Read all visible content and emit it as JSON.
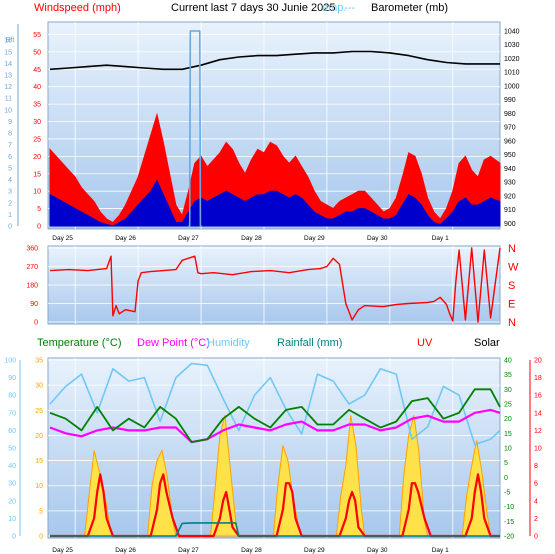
{
  "top_header": {
    "windspeed_label": "Windspeed (mph)",
    "current_label": "Current last 7 days 30 Junie 2025",
    "temp_overlap_label": "emp.",
    "dashes": "---",
    "barometer_label": "Barometer (mb)"
  },
  "bottom_header": {
    "temperature_label": "Temperature (°C)",
    "dewpoint_label": "Dew Point (°C)",
    "humidity_label": "Humidity",
    "rainfall_label": "Rainfall (mm)",
    "uv_label": "UV",
    "solar_label": "Solar"
  },
  "colors": {
    "panel_bg_top": "#e6f1fb",
    "panel_bg_bottom": "#a9c9ec",
    "grid": "#ffffff",
    "wind_gust": "#ff0000",
    "wind_avg": "#0000cc",
    "barometer": "#000000",
    "direction": "#ff0000",
    "temperature": "#008000",
    "dewpoint": "#ff00ff",
    "humidity": "#6fc8f5",
    "rainfall": "#008080",
    "uv": "#ff0000",
    "solar": "#ffa000",
    "solar_fill": "#ffe24a",
    "axis_blue": "#6aa8e0"
  },
  "chart_data": [
    {
      "type": "line",
      "name": "wind_barometer",
      "x_ticks": [
        "Day 25",
        "Day 26",
        "Day 27",
        "Day 28",
        "Day 29",
        "Day 30",
        "Day 1"
      ],
      "y_left_ticks": [
        "0",
        "5",
        "10",
        "15",
        "20",
        "25",
        "30",
        "35",
        "40",
        "45",
        "50",
        "55"
      ],
      "y_left_lim": [
        0,
        58
      ],
      "y_left_outer_ticks": [
        "0",
        "1",
        "2",
        "3",
        "4",
        "5",
        "6",
        "7",
        "8",
        "9",
        "10",
        "11",
        "12",
        "13",
        "14",
        "15",
        "16"
      ],
      "y_left_outer_label": "Bft",
      "y_right_ticks": [
        "900",
        "910",
        "920",
        "930",
        "940",
        "950",
        "960",
        "970",
        "980",
        "990",
        "1000",
        "1010",
        "1020",
        "1030",
        "1040"
      ],
      "y_right_lim": [
        898,
        1045
      ],
      "series": [
        {
          "name": "gust",
          "axis": "left",
          "x": [
            0,
            0.1,
            0.2,
            0.3,
            0.4,
            0.5,
            0.6,
            0.7,
            0.8,
            0.9,
            1.0,
            1.1,
            1.2,
            1.3,
            1.4,
            1.5,
            1.6,
            1.7,
            1.8,
            1.9,
            2.0,
            2.1,
            2.2,
            2.3,
            2.4,
            2.5,
            2.6,
            2.7,
            2.8,
            2.9,
            3.0,
            3.1,
            3.2,
            3.3,
            3.4,
            3.5,
            3.6,
            3.7,
            3.8,
            3.9,
            4.0,
            4.1,
            4.2,
            4.3,
            4.4,
            4.5,
            4.6,
            4.7,
            4.8,
            4.9,
            5.0,
            5.1,
            5.2,
            5.3,
            5.4,
            5.5,
            5.6,
            5.7,
            5.8,
            5.9,
            6.0,
            6.1,
            6.2,
            6.3,
            6.4,
            6.5,
            6.6,
            6.7,
            6.8,
            6.9,
            7.0,
            7.15
          ],
          "values": [
            22,
            20,
            18,
            16,
            14,
            11,
            9,
            7,
            4,
            2,
            1,
            3,
            6,
            10,
            14,
            20,
            26,
            32,
            24,
            15,
            6,
            3,
            10,
            18,
            20,
            17,
            19,
            21,
            24,
            22,
            18,
            15,
            19,
            22,
            21,
            24,
            23,
            20,
            18,
            20,
            17,
            14,
            10,
            7,
            6,
            5,
            7,
            8,
            9,
            10,
            10,
            8,
            6,
            4,
            5,
            8,
            14,
            21,
            20,
            15,
            8,
            4,
            2,
            5,
            10,
            18,
            20,
            16,
            14,
            19,
            20,
            18
          ]
        },
        {
          "name": "average",
          "axis": "left",
          "x": [
            0,
            0.1,
            0.2,
            0.3,
            0.4,
            0.5,
            0.6,
            0.7,
            0.8,
            0.9,
            1.0,
            1.1,
            1.2,
            1.3,
            1.4,
            1.5,
            1.6,
            1.7,
            1.8,
            1.9,
            2.0,
            2.1,
            2.2,
            2.3,
            2.4,
            2.5,
            2.6,
            2.7,
            2.8,
            2.9,
            3.0,
            3.1,
            3.2,
            3.3,
            3.4,
            3.5,
            3.6,
            3.7,
            3.8,
            3.9,
            4.0,
            4.1,
            4.2,
            4.3,
            4.4,
            4.5,
            4.6,
            4.7,
            4.8,
            4.9,
            5.0,
            5.1,
            5.2,
            5.3,
            5.4,
            5.5,
            5.6,
            5.7,
            5.8,
            5.9,
            6.0,
            6.1,
            6.2,
            6.3,
            6.4,
            6.5,
            6.6,
            6.7,
            6.8,
            6.9,
            7.0,
            7.15
          ],
          "values": [
            9,
            8,
            7,
            6,
            5,
            4,
            3,
            2,
            1,
            0.5,
            0,
            1,
            2,
            4,
            6,
            8,
            10,
            13,
            9,
            5,
            1,
            1,
            4,
            7,
            8,
            7,
            8,
            9,
            10,
            9,
            8,
            7,
            8,
            9,
            9,
            10,
            10,
            9,
            8,
            9,
            8,
            6,
            4,
            3,
            2,
            2,
            3,
            4,
            4,
            5,
            5,
            4,
            3,
            2,
            2,
            3,
            6,
            9,
            8,
            6,
            3,
            1,
            0.5,
            2,
            4,
            7,
            8,
            6,
            6,
            7,
            8,
            7
          ]
        },
        {
          "name": "barometer",
          "axis": "right",
          "x": [
            0,
            0.3,
            0.6,
            0.9,
            1.2,
            1.5,
            1.8,
            2.1,
            2.4,
            2.7,
            3.0,
            3.3,
            3.6,
            3.9,
            4.2,
            4.5,
            4.8,
            5.1,
            5.4,
            5.7,
            6.0,
            6.3,
            6.6,
            6.9,
            7.15
          ],
          "values": [
            1012,
            1013,
            1014,
            1015,
            1014,
            1013,
            1012,
            1012,
            1015,
            1019,
            1021,
            1022,
            1022,
            1023,
            1024,
            1024,
            1025,
            1025,
            1024,
            1022,
            1019,
            1017,
            1016,
            1016,
            1016
          ]
        },
        {
          "name": "temperature_spike",
          "axis": "left",
          "x": [
            2.2,
            2.22,
            2.23,
            2.38,
            2.39,
            2.41
          ],
          "values": [
            0,
            0,
            56,
            56,
            0,
            0
          ]
        }
      ]
    },
    {
      "type": "line",
      "name": "wind_direction",
      "x_ticks": [
        "Day 25",
        "Day 26",
        "Day 27",
        "Day 28",
        "Day 29",
        "Day 30",
        "Day 1"
      ],
      "y_left_ticks": [
        "0",
        "90",
        "180",
        "270",
        "360"
      ],
      "y_left_lim": [
        0,
        360
      ],
      "y_right_ticks": [
        "N",
        "E",
        "S",
        "W",
        "N"
      ],
      "series": [
        {
          "name": "direction",
          "x": [
            0,
            0.3,
            0.6,
            0.9,
            0.97,
            1.0,
            1.05,
            1.1,
            1.2,
            1.35,
            1.4,
            1.45,
            1.6,
            1.8,
            2.0,
            2.1,
            2.3,
            2.35,
            2.4,
            2.6,
            2.9,
            3.2,
            3.5,
            3.8,
            4.1,
            4.3,
            4.4,
            4.5,
            4.6,
            4.7,
            4.8,
            4.9,
            5.0,
            5.3,
            5.5,
            5.7,
            6.0,
            6.1,
            6.2,
            6.3,
            6.35,
            6.4,
            6.45,
            6.5,
            6.6,
            6.7,
            6.8,
            6.9,
            7.0,
            7.15
          ],
          "values": [
            250,
            255,
            250,
            260,
            320,
            30,
            80,
            40,
            60,
            50,
            200,
            240,
            245,
            250,
            255,
            300,
            320,
            240,
            235,
            240,
            230,
            245,
            250,
            240,
            255,
            260,
            270,
            310,
            280,
            90,
            10,
            60,
            80,
            75,
            85,
            90,
            95,
            100,
            120,
            85,
            40,
            5,
            200,
            350,
            10,
            360,
            0,
            350,
            20,
            360
          ]
        }
      ]
    },
    {
      "type": "line",
      "name": "temperature_rain_uv_solar",
      "x_ticks": [
        "Day 25",
        "Day 26",
        "Day 27",
        "Day 28",
        "Day 29",
        "Day 30",
        "Day 1"
      ],
      "y_left_outer_ticks": [
        "0",
        "10",
        "20",
        "30",
        "40",
        "50",
        "60",
        "70",
        "80",
        "90",
        "100"
      ],
      "y_left_ticks": [
        "0",
        "5",
        "10",
        "15",
        "20",
        "25",
        "30",
        "35"
      ],
      "y_left_lim": [
        0,
        35
      ],
      "y_right_ticks": [
        "-20",
        "-15",
        "-10",
        "-5",
        "0",
        "5",
        "10",
        "15",
        "20",
        "25",
        "30",
        "35",
        "40"
      ],
      "y_right_lim": [
        -20,
        40
      ],
      "y_right_uv_ticks": [
        "0",
        "2",
        "4",
        "6",
        "8",
        "10",
        "12",
        "14",
        "16",
        "18",
        "20"
      ],
      "series": [
        {
          "name": "temperature",
          "axis": "right",
          "x": [
            0,
            0.25,
            0.5,
            0.75,
            1.0,
            1.25,
            1.5,
            1.75,
            2.0,
            2.25,
            2.5,
            2.75,
            3.0,
            3.25,
            3.5,
            3.75,
            4.0,
            4.25,
            4.5,
            4.75,
            5.0,
            5.25,
            5.5,
            5.75,
            6.0,
            6.25,
            6.5,
            6.75,
            7.0,
            7.15
          ],
          "values": [
            22,
            20,
            16,
            24,
            16,
            20,
            17,
            24,
            20,
            12,
            13,
            20,
            24,
            20,
            17,
            23,
            24,
            18,
            18,
            23,
            20,
            17,
            19,
            26,
            27,
            20,
            22,
            30,
            30,
            24
          ]
        },
        {
          "name": "dewpoint",
          "axis": "right",
          "x": [
            0,
            0.25,
            0.5,
            0.75,
            1.0,
            1.25,
            1.5,
            1.75,
            2.0,
            2.25,
            2.5,
            2.75,
            3.0,
            3.25,
            3.5,
            3.75,
            4.0,
            4.25,
            4.5,
            4.75,
            5.0,
            5.25,
            5.5,
            5.75,
            6.0,
            6.25,
            6.5,
            6.75,
            7.0,
            7.15
          ],
          "values": [
            17,
            15,
            14,
            16,
            17,
            16,
            16,
            17,
            17,
            12,
            13,
            16,
            18,
            17,
            16,
            18,
            19,
            16,
            16,
            18,
            18,
            16,
            17,
            20,
            21,
            19,
            19,
            22,
            23,
            22
          ]
        },
        {
          "name": "humidity",
          "axis": "left_outer",
          "x": [
            0,
            0.25,
            0.5,
            0.75,
            1.0,
            1.25,
            1.5,
            1.75,
            2.0,
            2.25,
            2.5,
            2.75,
            3.0,
            3.25,
            3.5,
            3.75,
            4.0,
            4.25,
            4.5,
            4.75,
            5.0,
            5.25,
            5.5,
            5.75,
            6.0,
            6.25,
            6.5,
            6.75,
            7.0,
            7.15
          ],
          "values": [
            75,
            85,
            92,
            70,
            95,
            88,
            90,
            65,
            90,
            98,
            97,
            78,
            60,
            80,
            90,
            72,
            58,
            92,
            88,
            75,
            80,
            95,
            92,
            55,
            62,
            85,
            80,
            52,
            55,
            60
          ]
        },
        {
          "name": "rainfall",
          "axis": "left",
          "x": [
            0,
            1.95,
            2.0,
            2.1,
            2.25,
            2.3,
            2.4,
            2.85,
            2.95,
            3.0,
            7.15
          ],
          "values": [
            0,
            0,
            0,
            2.5,
            2.6,
            2.6,
            2.6,
            2.6,
            2.6,
            0,
            0
          ]
        },
        {
          "name": "uv",
          "axis": "right_uv",
          "x": [
            0,
            0.6,
            0.7,
            0.75,
            0.8,
            0.85,
            0.9,
            1.0,
            1.6,
            1.7,
            1.75,
            1.8,
            1.85,
            1.95,
            2.05,
            2.6,
            2.7,
            2.75,
            2.8,
            2.85,
            2.9,
            3.0,
            3.6,
            3.7,
            3.75,
            3.8,
            3.85,
            3.9,
            4.0,
            4.6,
            4.7,
            4.75,
            4.8,
            4.85,
            4.9,
            5.0,
            5.6,
            5.7,
            5.75,
            5.8,
            5.85,
            5.95,
            6.05,
            6.6,
            6.7,
            6.75,
            6.8,
            6.85,
            6.9,
            7.0,
            7.15
          ],
          "values": [
            0,
            0,
            2,
            5,
            7,
            5,
            2,
            0,
            0,
            3,
            6,
            7,
            5,
            2,
            0,
            0,
            2,
            4,
            5,
            3,
            1,
            0,
            0,
            3,
            6,
            6,
            5,
            2,
            0,
            0,
            2,
            4,
            5,
            4,
            1,
            0,
            0,
            3,
            6,
            6,
            5,
            2,
            0,
            0,
            2,
            5,
            7,
            5,
            2,
            0,
            0
          ]
        },
        {
          "name": "solar",
          "axis": "left",
          "x": [
            0,
            0.55,
            0.62,
            0.7,
            0.78,
            0.86,
            0.95,
            1.0,
            1.55,
            1.62,
            1.7,
            1.78,
            1.86,
            1.95,
            2.0,
            2.55,
            2.62,
            2.7,
            2.78,
            2.86,
            2.95,
            3.0,
            3.55,
            3.62,
            3.7,
            3.78,
            3.86,
            3.95,
            4.0,
            4.55,
            4.62,
            4.7,
            4.78,
            4.86,
            4.95,
            5.0,
            5.55,
            5.62,
            5.7,
            5.78,
            5.86,
            5.95,
            6.0,
            6.55,
            6.62,
            6.7,
            6.78,
            6.86,
            6.95,
            7.0,
            7.15
          ],
          "values": [
            0,
            0,
            8,
            17,
            13,
            9,
            2,
            0,
            0,
            10,
            15,
            17,
            12,
            3,
            0,
            0,
            9,
            20,
            24,
            14,
            3,
            0,
            0,
            10,
            18,
            15,
            8,
            2,
            0,
            0,
            8,
            14,
            24,
            18,
            5,
            0,
            0,
            12,
            20,
            24,
            17,
            3,
            0,
            0,
            8,
            14,
            19,
            13,
            4,
            0,
            0
          ]
        }
      ]
    }
  ]
}
